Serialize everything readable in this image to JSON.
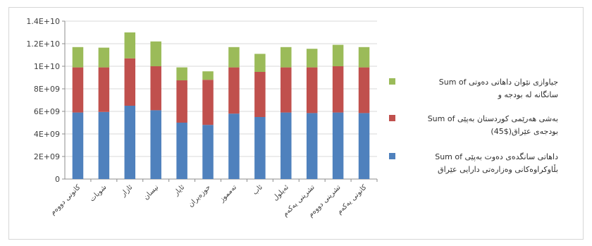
{
  "chart_data": {
    "type": "bar",
    "stacked": true,
    "title": "",
    "xlabel": "",
    "ylabel": "",
    "ylim": [
      0,
      14000000000
    ],
    "y_ticks": [
      0,
      2000000000,
      4000000000,
      6000000000,
      8000000000,
      10000000000,
      12000000000,
      14000000000
    ],
    "y_tick_labels": [
      "0",
      "2E+09",
      "4E+09",
      "6E+09",
      "8E+09",
      "1E+10",
      "1.2E+10",
      "1.4E+10"
    ],
    "grid": true,
    "legend_position": "right",
    "categories": [
      "کانونی دووەم",
      "شوبات",
      "ئازار",
      "نیسان",
      "ئایار",
      "حوزەیران",
      "تەمموز",
      "ئاب",
      "ئەیلول",
      "تشرینی یەکەم",
      "تشرینی دووەم",
      "کانونی یەکەم"
    ],
    "series": [
      {
        "name": "Sum of داهاتی سانگدەی دەوت بەپێی بڵاوکراوەکانی وەزارەتی دارایی عێراق",
        "color": "#4f81bd",
        "values": [
          5900000000,
          5950000000,
          6500000000,
          6100000000,
          5000000000,
          4800000000,
          5800000000,
          5500000000,
          5900000000,
          5850000000,
          5900000000,
          5850000000
        ]
      },
      {
        "name": "Sum of بەشی هەرێمی کوردستان بەپێی یاسای بودجەی عێراق (45$)",
        "color": "#c0504d",
        "values": [
          4000000000,
          3950000000,
          4200000000,
          3900000000,
          3750000000,
          4000000000,
          4100000000,
          4000000000,
          4000000000,
          4050000000,
          4100000000,
          4050000000
        ]
      },
      {
        "name": "Sum of جیاوازی نێوان داهاتی دەوتی سانگانە لە بودجە و",
        "color": "#9bbb59",
        "values": [
          1800000000,
          1750000000,
          2300000000,
          2200000000,
          1150000000,
          750000000,
          1800000000,
          1600000000,
          1800000000,
          1650000000,
          1900000000,
          1800000000
        ]
      }
    ]
  },
  "legend": {
    "items": [
      {
        "line1": "Sum of  جیاوازی نێوان داهاتی دەوتی",
        "line2": "سانگانە لە بودجە و"
      },
      {
        "line1": "Sum of  بەشی هەرێمی کوردستان بەپێی",
        "line2": "(45$)بودجەی عێراق"
      },
      {
        "line1": "Sum of  داهاتی سانگدەی دەوت بەپێی",
        "line2": "بڵاوکراوەکانی وەزارەتی دارایی عێراق"
      }
    ]
  }
}
